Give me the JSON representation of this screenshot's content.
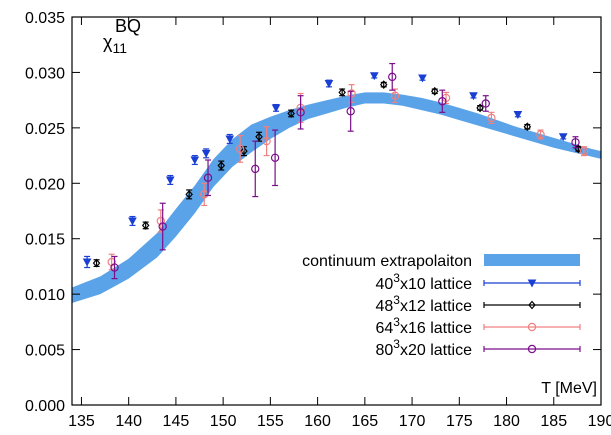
{
  "chart_data": {
    "type": "scatter",
    "title": "",
    "observable": {
      "base": "χ",
      "sub": "11",
      "sup": "BQ"
    },
    "xlabel": "T [MeV]",
    "ylabel": "",
    "xlim": [
      134,
      190
    ],
    "ylim": [
      0.0,
      0.035
    ],
    "xticks": [
      "135",
      "140",
      "145",
      "150",
      "155",
      "160",
      "165",
      "170",
      "175",
      "180",
      "185",
      "190"
    ],
    "yticks": [
      "0.000",
      "0.005",
      "0.010",
      "0.015",
      "0.020",
      "0.025",
      "0.030",
      "0.035"
    ],
    "grid": false,
    "legend_position": "bottom-right",
    "band": {
      "name": "continuum extrapolaiton",
      "color": "#5ba3e8",
      "x": [
        134,
        137,
        140,
        143,
        145,
        147,
        149,
        151,
        153,
        155,
        157,
        159,
        161,
        163,
        165,
        167,
        169,
        171,
        173,
        175,
        177,
        179,
        181,
        183,
        185,
        187,
        189,
        190
      ],
      "lower": [
        0.0092,
        0.01,
        0.0114,
        0.0133,
        0.0152,
        0.0173,
        0.0197,
        0.0215,
        0.0228,
        0.024,
        0.025,
        0.0258,
        0.0263,
        0.0268,
        0.0272,
        0.0272,
        0.027,
        0.0266,
        0.0262,
        0.0257,
        0.0252,
        0.0247,
        0.0242,
        0.0237,
        0.0232,
        0.0228,
        0.0224,
        0.0222
      ],
      "upper": [
        0.0106,
        0.0116,
        0.0132,
        0.0155,
        0.0177,
        0.0198,
        0.0222,
        0.024,
        0.0253,
        0.026,
        0.0266,
        0.0271,
        0.0275,
        0.0279,
        0.0282,
        0.0282,
        0.028,
        0.0277,
        0.0273,
        0.0268,
        0.0263,
        0.0257,
        0.0251,
        0.0246,
        0.0241,
        0.0236,
        0.0231,
        0.0229
      ]
    },
    "series": [
      {
        "name": "40",
        "name_sup": "3",
        "name_rest": "x10 lattice",
        "marker": "triangle",
        "color": "#1a3fd4",
        "points": [
          [
            135.6,
            0.0129,
            0.0005
          ],
          [
            140.4,
            0.0166,
            0.0004
          ],
          [
            144.4,
            0.0203,
            0.0004
          ],
          [
            147.0,
            0.0221,
            0.0004
          ],
          [
            148.2,
            0.0227,
            0.0004
          ],
          [
            150.7,
            0.024,
            0.0004
          ],
          [
            155.6,
            0.0268,
            0.0003
          ],
          [
            161.2,
            0.029,
            0.0003
          ],
          [
            166.0,
            0.0297,
            0.0002
          ],
          [
            171.1,
            0.0295,
            0.0002
          ],
          [
            176.5,
            0.0279,
            0.0002
          ],
          [
            181.2,
            0.0262,
            0.0002
          ],
          [
            186.0,
            0.0242,
            0.0002
          ]
        ]
      },
      {
        "name": "48",
        "name_sup": "3",
        "name_rest": "x12 lattice",
        "marker": "diamond",
        "color": "#000000",
        "points": [
          [
            136.6,
            0.0128,
            0.0003
          ],
          [
            141.8,
            0.0162,
            0.0003
          ],
          [
            146.4,
            0.019,
            0.0004
          ],
          [
            149.8,
            0.0216,
            0.0004
          ],
          [
            152.2,
            0.0229,
            0.0004
          ],
          [
            153.8,
            0.0242,
            0.0004
          ],
          [
            157.2,
            0.0263,
            0.0003
          ],
          [
            162.6,
            0.0282,
            0.0003
          ],
          [
            167.0,
            0.0289,
            0.0002
          ],
          [
            172.4,
            0.0283,
            0.0002
          ],
          [
            177.2,
            0.0268,
            0.0002
          ],
          [
            182.2,
            0.0251,
            0.0002
          ],
          [
            187.6,
            0.0231,
            0.0002
          ]
        ]
      },
      {
        "name": "64",
        "name_sup": "3",
        "name_rest": "x16 lattice",
        "marker": "circle",
        "color": "#f08080",
        "points": [
          [
            138.2,
            0.0129,
            0.0007
          ],
          [
            143.4,
            0.0166,
            0.001
          ],
          [
            148.0,
            0.019,
            0.001
          ],
          [
            151.8,
            0.0231,
            0.0012
          ],
          [
            154.6,
            0.0238,
            0.0013
          ],
          [
            158.2,
            0.0268,
            0.0013
          ],
          [
            163.6,
            0.0281,
            0.0008
          ],
          [
            168.2,
            0.0279,
            0.0006
          ],
          [
            173.6,
            0.0277,
            0.0005
          ],
          [
            178.4,
            0.0259,
            0.0005
          ],
          [
            183.6,
            0.0244,
            0.0004
          ],
          [
            188.2,
            0.0229,
            0.0004
          ]
        ]
      },
      {
        "name": "80",
        "name_sup": "3",
        "name_rest": "x20 lattice",
        "marker": "circle",
        "color": "#7a0f8a",
        "points": [
          [
            138.5,
            0.0124,
            0.001
          ],
          [
            143.6,
            0.0161,
            0.0021
          ],
          [
            148.4,
            0.0205,
            0.0016
          ],
          [
            153.4,
            0.0213,
            0.0025
          ],
          [
            155.5,
            0.0223,
            0.0025
          ],
          [
            158.2,
            0.0264,
            0.0015
          ],
          [
            163.5,
            0.0265,
            0.0018
          ],
          [
            167.9,
            0.0296,
            0.0012
          ],
          [
            173.2,
            0.0274,
            0.001
          ],
          [
            177.8,
            0.0272,
            0.0007
          ],
          [
            187.3,
            0.0237,
            0.0005
          ]
        ]
      }
    ]
  }
}
